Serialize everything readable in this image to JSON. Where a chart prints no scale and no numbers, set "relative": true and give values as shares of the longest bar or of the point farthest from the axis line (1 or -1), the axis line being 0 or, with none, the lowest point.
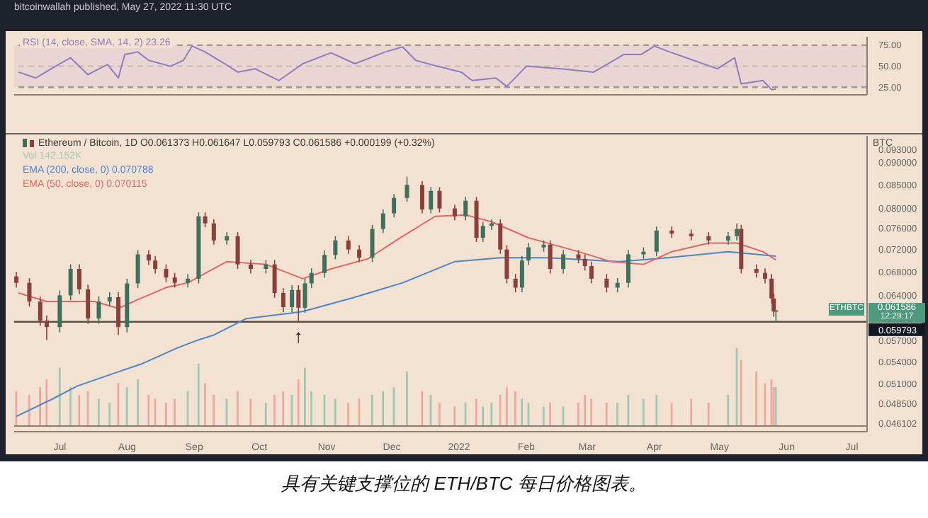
{
  "chart_data": [
    {
      "type": "line",
      "x": [
        "2021-06-12",
        "2021-06-20",
        "2021-07-01",
        "2021-07-06",
        "2021-07-14",
        "2021-07-23",
        "2021-07-28",
        "2021-07-31",
        "2021-08-06",
        "2021-08-11",
        "2021-08-21",
        "2021-08-27",
        "2021-08-31",
        "2021-09-06",
        "2021-09-15",
        "2021-09-21",
        "2021-09-29",
        "2021-10-10",
        "2021-10-21",
        "2021-11-03",
        "2021-11-14",
        "2021-11-28",
        "2021-12-06",
        "2021-12-12",
        "2021-12-22",
        "2022-01-02",
        "2022-01-07",
        "2022-01-18",
        "2022-01-23",
        "2022-02-01",
        "2022-02-17",
        "2022-03-04",
        "2022-03-18",
        "2022-03-26",
        "2022-04-01",
        "2022-04-08",
        "2022-04-19",
        "2022-04-30",
        "2022-05-08",
        "2022-05-11",
        "2022-05-21",
        "2022-05-25",
        "2022-05-27"
      ],
      "xlim": [
        "2021-06-10",
        "2022-07-08"
      ],
      "ylim": [
        16,
        85
      ],
      "yticks": [
        {
          "value": 75,
          "label": "75.00"
        },
        {
          "value": 50,
          "label": "50.00"
        },
        {
          "value": 25,
          "label": "25.00"
        }
      ],
      "tick_labels": "y",
      "legend": "top left",
      "bands": [
        {
          "axis": "y",
          "from": 25,
          "to": 75,
          "color": "#ead5d3"
        }
      ],
      "ref_lines": [
        {
          "axis": "y",
          "value": 75,
          "color": "#a09890",
          "line_style": "dashed"
        },
        {
          "axis": "y",
          "value": 50,
          "color": "#c8bcb4",
          "line_style": "dashed"
        },
        {
          "axis": "y",
          "value": 25,
          "color": "#a09890",
          "line_style": "dashed"
        }
      ],
      "series": [
        {
          "name": "RSI (14, close, SMA, 14, 2) 23.26",
          "color": "#8e7cc3",
          "values": [
            43,
            36,
            53,
            60,
            40,
            52,
            36,
            64,
            67,
            57,
            50,
            57,
            74,
            67,
            53,
            43,
            47,
            33,
            53,
            66,
            53,
            67,
            73,
            57,
            50,
            43,
            33,
            36,
            26,
            50,
            47,
            43,
            64,
            64,
            74,
            67,
            57,
            47,
            60,
            29,
            33,
            22,
            23
          ]
        }
      ],
      "annotations": [
        "bitcoinwallah published, May 27, 2022 11:30 UTC"
      ]
    },
    {
      "type": "candlestick",
      "xlim": [
        "2021-06-10",
        "2022-07-08"
      ],
      "ylim": [
        0.0451,
        0.0964
      ],
      "log": true,
      "legend": "top left",
      "xticks": [
        {
          "value": "2021-07-01",
          "label": "Jul"
        },
        {
          "value": "2021-08-01",
          "label": "Aug"
        },
        {
          "value": "2021-09-01",
          "label": "Sep"
        },
        {
          "value": "2021-10-01",
          "label": "Oct"
        },
        {
          "value": "2021-11-01",
          "label": "Nov"
        },
        {
          "value": "2021-12-01",
          "label": "Dec"
        },
        {
          "value": "2022-01-01",
          "label": "2022"
        },
        {
          "value": "2022-02-01",
          "label": "Feb"
        },
        {
          "value": "2022-03-01",
          "label": "Mar"
        },
        {
          "value": "2022-04-01",
          "label": "Apr"
        },
        {
          "value": "2022-05-01",
          "label": "May"
        },
        {
          "value": "2022-06-01",
          "label": "Jun"
        },
        {
          "value": "2022-07-01",
          "label": "Jul"
        }
      ],
      "yticks": [
        {
          "value": 0.093,
          "label": "0.093000"
        },
        {
          "value": 0.09,
          "label": "0.090000"
        },
        {
          "value": 0.085,
          "label": "0.085000"
        },
        {
          "value": 0.08,
          "label": "0.080000"
        },
        {
          "value": 0.076,
          "label": "0.076000"
        },
        {
          "value": 0.072,
          "label": "0.072000"
        },
        {
          "value": 0.068,
          "label": "0.068000"
        },
        {
          "value": 0.064,
          "label": "0.064000"
        },
        {
          "value": 0.057,
          "label": "0.057000"
        },
        {
          "value": 0.054,
          "label": "0.054000"
        },
        {
          "value": 0.051,
          "label": "0.051000"
        },
        {
          "value": 0.0485,
          "label": "0.048500"
        },
        {
          "value": 0.046102,
          "label": "0.046102"
        }
      ],
      "ref_lines": [
        {
          "axis": "y",
          "value": 0.059793,
          "label": "0.059793",
          "color": "#5a5048"
        }
      ],
      "annotations": [
        "BTC",
        "ETHBTC",
        "0.061586",
        "12:29:17",
        {
          "text": "↑",
          "x": "2021-10-19",
          "y": 0.0599
        }
      ],
      "series": [
        {
          "type": "candlestick",
          "name": "Ethereum / Bitcoin, 1D  O0.061373 H0.061647 L0.059793 C0.061586 +0.000199 (+0.32%)",
          "color": "#3a3a3a",
          "x": [
            "2021-06-11",
            "2021-06-17",
            "2021-06-22",
            "2021-06-25",
            "2021-07-01",
            "2021-07-06",
            "2021-07-10",
            "2021-07-14",
            "2021-07-19",
            "2021-07-24",
            "2021-07-28",
            "2021-08-01",
            "2021-08-06",
            "2021-08-11",
            "2021-08-14",
            "2021-08-19",
            "2021-08-23",
            "2021-08-29",
            "2021-09-03",
            "2021-09-06",
            "2021-09-10",
            "2021-09-16",
            "2021-09-21",
            "2021-09-27",
            "2021-10-04",
            "2021-10-08",
            "2021-10-12",
            "2021-10-16",
            "2021-10-19",
            "2021-10-22",
            "2021-10-25",
            "2021-10-31",
            "2021-11-05",
            "2021-11-11",
            "2021-11-16",
            "2021-11-22",
            "2021-11-27",
            "2021-12-02",
            "2021-12-08",
            "2021-12-15",
            "2021-12-19",
            "2021-12-23",
            "2021-12-30",
            "2022-01-04",
            "2022-01-09",
            "2022-01-12",
            "2022-01-16",
            "2022-01-20",
            "2022-01-23",
            "2022-01-27",
            "2022-01-30",
            "2022-02-02",
            "2022-02-09",
            "2022-02-12",
            "2022-02-18",
            "2022-02-25",
            "2022-02-28",
            "2022-03-03",
            "2022-03-10",
            "2022-03-15",
            "2022-03-20",
            "2022-03-27",
            "2022-04-02",
            "2022-04-09",
            "2022-04-18",
            "2022-04-26",
            "2022-05-05",
            "2022-05-09",
            "2022-05-11",
            "2022-05-18",
            "2022-05-22",
            "2022-05-25",
            "2022-05-26",
            "2022-05-27"
          ],
          "ohlc": [
            [
              0.0672,
              0.068,
              0.0653,
              0.0661
            ],
            [
              0.0661,
              0.0669,
              0.0622,
              0.063
            ],
            [
              0.063,
              0.0638,
              0.0592,
              0.06
            ],
            [
              0.06,
              0.0608,
              0.0571,
              0.059
            ],
            [
              0.059,
              0.0648,
              0.0582,
              0.064
            ],
            [
              0.064,
              0.0693,
              0.0632,
              0.0685
            ],
            [
              0.0685,
              0.0693,
              0.0642,
              0.065
            ],
            [
              0.065,
              0.0658,
              0.0595,
              0.0603
            ],
            [
              0.0603,
              0.0638,
              0.0595,
              0.063
            ],
            [
              0.063,
              0.0645,
              0.0622,
              0.0637
            ],
            [
              0.0637,
              0.0645,
              0.0578,
              0.059
            ],
            [
              0.059,
              0.0668,
              0.0582,
              0.066
            ],
            [
              0.066,
              0.0719,
              0.0652,
              0.0711
            ],
            [
              0.0711,
              0.0719,
              0.0692,
              0.07
            ],
            [
              0.07,
              0.0708,
              0.0677,
              0.0685
            ],
            [
              0.0685,
              0.0693,
              0.0662,
              0.067
            ],
            [
              0.067,
              0.0678,
              0.0653,
              0.0661
            ],
            [
              0.0661,
              0.0676,
              0.0653,
              0.0668
            ],
            [
              0.0668,
              0.0792,
              0.066,
              0.0784
            ],
            [
              0.0784,
              0.0792,
              0.0762,
              0.077
            ],
            [
              0.077,
              0.0778,
              0.0729,
              0.0737
            ],
            [
              0.0737,
              0.0753,
              0.0729,
              0.0745
            ],
            [
              0.0745,
              0.0753,
              0.0685,
              0.0693
            ],
            [
              0.0693,
              0.0701,
              0.0677,
              0.0685
            ],
            [
              0.0685,
              0.0701,
              0.0677,
              0.0693
            ],
            [
              0.0693,
              0.0701,
              0.0636,
              0.0644
            ],
            [
              0.0644,
              0.0652,
              0.0613,
              0.0621
            ],
            [
              0.0621,
              0.0657,
              0.0613,
              0.0649
            ],
            [
              0.0649,
              0.0657,
              0.0599,
              0.062
            ],
            [
              0.062,
              0.0668,
              0.0612,
              0.066
            ],
            [
              0.066,
              0.0686,
              0.0652,
              0.0678
            ],
            [
              0.0678,
              0.0718,
              0.067,
              0.071
            ],
            [
              0.071,
              0.0745,
              0.0702,
              0.0737
            ],
            [
              0.0737,
              0.0745,
              0.0712,
              0.072
            ],
            [
              0.072,
              0.0728,
              0.0697,
              0.0705
            ],
            [
              0.0705,
              0.0767,
              0.0697,
              0.0759
            ],
            [
              0.0759,
              0.0798,
              0.0751,
              0.079
            ],
            [
              0.079,
              0.083,
              0.0782,
              0.0822
            ],
            [
              0.0822,
              0.0868,
              0.0814,
              0.085
            ],
            [
              0.085,
              0.0858,
              0.079,
              0.0798
            ],
            [
              0.0798,
              0.0845,
              0.079,
              0.0837
            ],
            [
              0.0837,
              0.0845,
              0.0792,
              0.08
            ],
            [
              0.08,
              0.0808,
              0.0776,
              0.0784
            ],
            [
              0.0784,
              0.0824,
              0.0776,
              0.0816
            ],
            [
              0.0816,
              0.0824,
              0.0734,
              0.0742
            ],
            [
              0.0742,
              0.0773,
              0.0734,
              0.0765
            ],
            [
              0.0765,
              0.0778,
              0.0757,
              0.077
            ],
            [
              0.077,
              0.0778,
              0.0712,
              0.072
            ],
            [
              0.072,
              0.0728,
              0.066,
              0.0668
            ],
            [
              0.0668,
              0.0676,
              0.0645,
              0.0653
            ],
            [
              0.0653,
              0.0708,
              0.0645,
              0.07
            ],
            [
              0.07,
              0.0732,
              0.0692,
              0.0724
            ],
            [
              0.0724,
              0.0737,
              0.0716,
              0.0729
            ],
            [
              0.0729,
              0.0737,
              0.0677,
              0.0685
            ],
            [
              0.0685,
              0.0719,
              0.0677,
              0.0711
            ],
            [
              0.0711,
              0.0719,
              0.0695,
              0.0703
            ],
            [
              0.0703,
              0.0711,
              0.0682,
              0.069
            ],
            [
              0.069,
              0.0698,
              0.066,
              0.0668
            ],
            [
              0.0668,
              0.0676,
              0.0645,
              0.0653
            ],
            [
              0.0653,
              0.0669,
              0.0645,
              0.0661
            ],
            [
              0.0661,
              0.0719,
              0.0653,
              0.0711
            ],
            [
              0.0711,
              0.0724,
              0.0703,
              0.0716
            ],
            [
              0.0716,
              0.0764,
              0.0708,
              0.0756
            ],
            [
              0.0756,
              0.0764,
              0.0742,
              0.075
            ],
            [
              0.075,
              0.0758,
              0.0737,
              0.0745
            ],
            [
              0.0745,
              0.0753,
              0.0729,
              0.0737
            ],
            [
              0.0737,
              0.0753,
              0.0729,
              0.0745
            ],
            [
              0.0745,
              0.077,
              0.0737,
              0.0759
            ],
            [
              0.0759,
              0.0767,
              0.0677,
              0.0685
            ],
            [
              0.0685,
              0.0693,
              0.067,
              0.0678
            ],
            [
              0.0678,
              0.0686,
              0.066,
              0.0668
            ],
            [
              0.0668,
              0.0676,
              0.0627,
              0.0635
            ],
            [
              0.0635,
              0.0643,
              0.0606,
              0.0614
            ],
            [
              0.061373,
              0.061647,
              0.059793,
              0.061586
            ]
          ],
          "colors": [
            "#8a3f3a",
            "#8a3f3a",
            "#8a3f3a",
            "#8a3f3a",
            "#40705d",
            "#40705d",
            "#8a3f3a",
            "#8a3f3a",
            "#40705d",
            "#40705d",
            "#8a3f3a",
            "#40705d",
            "#40705d",
            "#8a3f3a",
            "#8a3f3a",
            "#8a3f3a",
            "#8a3f3a",
            "#40705d",
            "#40705d",
            "#8a3f3a",
            "#8a3f3a",
            "#40705d",
            "#8a3f3a",
            "#8a3f3a",
            "#40705d",
            "#8a3f3a",
            "#8a3f3a",
            "#40705d",
            "#8a3f3a",
            "#40705d",
            "#40705d",
            "#40705d",
            "#40705d",
            "#8a3f3a",
            "#8a3f3a",
            "#40705d",
            "#40705d",
            "#40705d",
            "#40705d",
            "#8a3f3a",
            "#40705d",
            "#8a3f3a",
            "#8a3f3a",
            "#40705d",
            "#8a3f3a",
            "#40705d",
            "#40705d",
            "#8a3f3a",
            "#8a3f3a",
            "#8a3f3a",
            "#40705d",
            "#40705d",
            "#40705d",
            "#8a3f3a",
            "#40705d",
            "#8a3f3a",
            "#8a3f3a",
            "#8a3f3a",
            "#8a3f3a",
            "#40705d",
            "#40705d",
            "#40705d",
            "#40705d",
            "#8a3f3a",
            "#8a3f3a",
            "#8a3f3a",
            "#40705d",
            "#40705d",
            "#8a3f3a",
            "#8a3f3a",
            "#8a3f3a",
            "#8a3f3a",
            "#8a3f3a",
            "#40705d"
          ]
        },
        {
          "type": "line",
          "name": "EMA (200, close, 0) 0.070788",
          "color": "#4a86c8",
          "x": [
            "2021-06-11",
            "2021-06-28",
            "2021-07-09",
            "2021-07-28",
            "2021-08-08",
            "2021-08-24",
            "2021-09-03",
            "2021-09-10",
            "2021-09-25",
            "2021-10-12",
            "2021-10-21",
            "2021-11-14",
            "2021-12-06",
            "2021-12-30",
            "2022-01-20",
            "2022-02-11",
            "2022-03-16",
            "2022-04-07",
            "2022-05-05",
            "2022-05-27"
          ],
          "values": [
            0.0469,
            0.0491,
            0.0507,
            0.0526,
            0.0537,
            0.0559,
            0.0571,
            0.0578,
            0.0603,
            0.061,
            0.0614,
            0.0637,
            0.0661,
            0.0698,
            0.0705,
            0.0705,
            0.0698,
            0.0705,
            0.0716,
            0.070788
          ]
        },
        {
          "type": "line",
          "name": "EMA (50, close, 0) 0.070115",
          "color": "#e06666",
          "x": [
            "2021-06-12",
            "2021-06-25",
            "2021-07-06",
            "2021-07-17",
            "2021-07-28",
            "2021-08-06",
            "2021-08-19",
            "2021-08-29",
            "2021-09-16",
            "2021-10-04",
            "2021-10-21",
            "2021-11-03",
            "2021-11-20",
            "2021-12-06",
            "2021-12-21",
            "2022-01-04",
            "2022-01-16",
            "2022-02-02",
            "2022-02-25",
            "2022-03-12",
            "2022-03-27",
            "2022-04-09",
            "2022-04-26",
            "2022-05-09",
            "2022-05-21",
            "2022-05-27"
          ],
          "values": [
            0.0644,
            0.063,
            0.063,
            0.063,
            0.0619,
            0.0633,
            0.0653,
            0.0661,
            0.0698,
            0.0693,
            0.0668,
            0.0685,
            0.0703,
            0.0745,
            0.0784,
            0.0787,
            0.0773,
            0.0742,
            0.0716,
            0.0698,
            0.0693,
            0.0716,
            0.0732,
            0.0732,
            0.0716,
            0.070115
          ]
        }
      ]
    },
    {
      "type": "bar",
      "relative": true,
      "xlim": [
        "2021-06-10",
        "2022-07-08"
      ],
      "tick_labels": false,
      "legend": "top left",
      "annotations": [
        "具有关键支撑位的 ETH/BTC 每日价格图表。"
      ],
      "series": [
        {
          "name": "Vol 142.152K",
          "color": "#9fc8b4",
          "x": [
            "2021-06-11",
            "2021-06-17",
            "2021-06-22",
            "2021-06-25",
            "2021-07-01",
            "2021-07-06",
            "2021-07-10",
            "2021-07-14",
            "2021-07-19",
            "2021-07-24",
            "2021-07-28",
            "2021-08-01",
            "2021-08-06",
            "2021-08-11",
            "2021-08-14",
            "2021-08-19",
            "2021-08-23",
            "2021-08-29",
            "2021-09-03",
            "2021-09-06",
            "2021-09-10",
            "2021-09-16",
            "2021-09-21",
            "2021-09-27",
            "2021-10-04",
            "2021-10-08",
            "2021-10-12",
            "2021-10-16",
            "2021-10-19",
            "2021-10-22",
            "2021-10-25",
            "2021-10-31",
            "2021-11-05",
            "2021-11-11",
            "2021-11-16",
            "2021-11-22",
            "2021-11-27",
            "2021-12-02",
            "2021-12-08",
            "2021-12-15",
            "2021-12-19",
            "2021-12-23",
            "2021-12-30",
            "2022-01-04",
            "2022-01-09",
            "2022-01-12",
            "2022-01-16",
            "2022-01-20",
            "2022-01-23",
            "2022-01-27",
            "2022-01-30",
            "2022-02-02",
            "2022-02-09",
            "2022-02-12",
            "2022-02-18",
            "2022-02-25",
            "2022-02-28",
            "2022-03-03",
            "2022-03-10",
            "2022-03-15",
            "2022-03-20",
            "2022-03-27",
            "2022-04-02",
            "2022-04-09",
            "2022-04-18",
            "2022-04-26",
            "2022-05-05",
            "2022-05-09",
            "2022-05-11",
            "2022-05-18",
            "2022-05-22",
            "2022-05-25",
            "2022-05-26",
            "2022-05-27"
          ],
          "values": [
            0.45,
            0.4,
            0.5,
            0.6,
            0.75,
            0.5,
            0.4,
            0.45,
            0.35,
            0.3,
            0.55,
            0.5,
            0.6,
            0.4,
            0.35,
            0.3,
            0.35,
            0.45,
            0.8,
            0.55,
            0.4,
            0.35,
            0.45,
            0.35,
            0.3,
            0.4,
            0.45,
            0.4,
            0.6,
            0.75,
            0.45,
            0.4,
            0.35,
            0.3,
            0.35,
            0.4,
            0.45,
            0.5,
            0.7,
            0.45,
            0.4,
            0.3,
            0.25,
            0.3,
            0.35,
            0.25,
            0.3,
            0.4,
            0.5,
            0.45,
            0.35,
            0.3,
            0.25,
            0.3,
            0.25,
            0.3,
            0.4,
            0.35,
            0.3,
            0.3,
            0.4,
            0.35,
            0.4,
            0.3,
            0.35,
            0.3,
            0.4,
            1,
            0.85,
            0.7,
            0.55,
            0.6,
            0.5,
            0.5
          ],
          "colors": [
            "#eea79c",
            "#eea79c",
            "#eea79c",
            "#eea79c",
            "#9fc8b4",
            "#9fc8b4",
            "#eea79c",
            "#eea79c",
            "#9fc8b4",
            "#9fc8b4",
            "#eea79c",
            "#9fc8b4",
            "#9fc8b4",
            "#eea79c",
            "#eea79c",
            "#eea79c",
            "#eea79c",
            "#9fc8b4",
            "#9fc8b4",
            "#eea79c",
            "#eea79c",
            "#9fc8b4",
            "#eea79c",
            "#eea79c",
            "#9fc8b4",
            "#eea79c",
            "#eea79c",
            "#9fc8b4",
            "#eea79c",
            "#9fc8b4",
            "#9fc8b4",
            "#9fc8b4",
            "#9fc8b4",
            "#eea79c",
            "#eea79c",
            "#9fc8b4",
            "#9fc8b4",
            "#9fc8b4",
            "#9fc8b4",
            "#eea79c",
            "#9fc8b4",
            "#eea79c",
            "#eea79c",
            "#9fc8b4",
            "#eea79c",
            "#9fc8b4",
            "#9fc8b4",
            "#eea79c",
            "#eea79c",
            "#eea79c",
            "#9fc8b4",
            "#9fc8b4",
            "#9fc8b4",
            "#eea79c",
            "#9fc8b4",
            "#eea79c",
            "#eea79c",
            "#eea79c",
            "#eea79c",
            "#9fc8b4",
            "#9fc8b4",
            "#9fc8b4",
            "#9fc8b4",
            "#eea79c",
            "#eea79c",
            "#eea79c",
            "#9fc8b4",
            "#9fc8b4",
            "#eea79c",
            "#eea79c",
            "#eea79c",
            "#eea79c",
            "#eea79c",
            "#9fc8b4"
          ]
        }
      ]
    }
  ]
}
